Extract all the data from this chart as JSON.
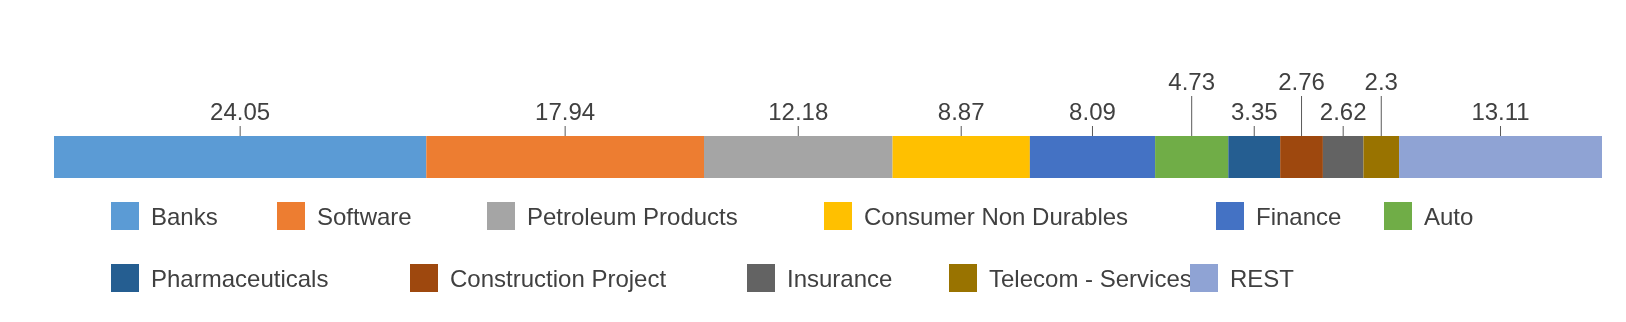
{
  "chart_data": {
    "type": "bar",
    "orientation": "horizontal",
    "stacked": true,
    "categories": [
      null
    ],
    "data_labels": true,
    "legend": "bottom",
    "series": [
      {
        "name": "Banks",
        "color": "#5b9bd5",
        "values": [
          24.05
        ]
      },
      {
        "name": "Software",
        "color": "#ed7d31",
        "values": [
          17.94
        ]
      },
      {
        "name": "Petroleum Products",
        "color": "#a5a5a5",
        "values": [
          12.18
        ]
      },
      {
        "name": "Consumer Non Durables",
        "color": "#ffc000",
        "values": [
          8.87
        ]
      },
      {
        "name": "Finance",
        "color": "#4472c4",
        "values": [
          8.09
        ]
      },
      {
        "name": "Auto",
        "color": "#70ad47",
        "values": [
          4.73
        ]
      },
      {
        "name": "Pharmaceuticals",
        "color": "#255e91",
        "values": [
          3.35
        ]
      },
      {
        "name": "Construction Project",
        "color": "#9e480e",
        "values": [
          2.76
        ]
      },
      {
        "name": "Insurance",
        "color": "#636363",
        "values": [
          2.62
        ]
      },
      {
        "name": "Telecom - Services",
        "color": "#997300",
        "values": [
          2.3
        ]
      },
      {
        "name": "REST",
        "color": "#8fa3d4",
        "values": [
          13.11
        ]
      }
    ]
  }
}
